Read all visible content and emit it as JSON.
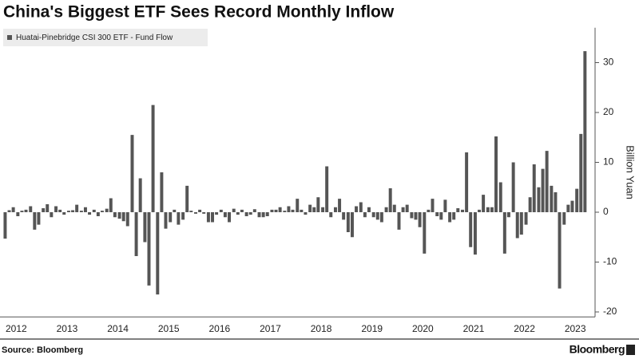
{
  "chart_data": {
    "type": "bar",
    "title": "China's Biggest ETF Sees Record Monthly Inflow",
    "y_axis_label": "Billion Yuan",
    "source": "Source: Bloomberg",
    "brand": "Bloomberg",
    "xlim": [
      2012.35,
      2024.06
    ],
    "ylim": [
      -21,
      37
    ],
    "yticks": [
      -20,
      -10,
      0,
      10,
      20,
      30
    ],
    "xticks": [
      {
        "value": 2012.67,
        "label": "2012"
      },
      {
        "value": 2013.67,
        "label": "2013"
      },
      {
        "value": 2014.67,
        "label": "2014"
      },
      {
        "value": 2015.67,
        "label": "2015"
      },
      {
        "value": 2016.67,
        "label": "2016"
      },
      {
        "value": 2017.67,
        "label": "2017"
      },
      {
        "value": 2018.67,
        "label": "2018"
      },
      {
        "value": 2019.67,
        "label": "2019"
      },
      {
        "value": 2020.67,
        "label": "2020"
      },
      {
        "value": 2021.67,
        "label": "2021"
      },
      {
        "value": 2022.67,
        "label": "2022"
      },
      {
        "value": 2023.67,
        "label": "2023"
      }
    ],
    "x": [
      2012.42,
      2012.5,
      2012.58,
      2012.67,
      2012.75,
      2012.83,
      2012.92,
      2013,
      2013.08,
      2013.17,
      2013.25,
      2013.33,
      2013.42,
      2013.5,
      2013.58,
      2013.67,
      2013.75,
      2013.83,
      2013.92,
      2014,
      2014.08,
      2014.17,
      2014.25,
      2014.33,
      2014.42,
      2014.5,
      2014.58,
      2014.67,
      2014.75,
      2014.83,
      2014.92,
      2015,
      2015.08,
      2015.17,
      2015.25,
      2015.33,
      2015.42,
      2015.5,
      2015.58,
      2015.67,
      2015.75,
      2015.83,
      2015.92,
      2016,
      2016.08,
      2016.17,
      2016.25,
      2016.33,
      2016.42,
      2016.5,
      2016.58,
      2016.67,
      2016.75,
      2016.83,
      2016.92,
      2017,
      2017.08,
      2017.17,
      2017.25,
      2017.33,
      2017.42,
      2017.5,
      2017.58,
      2017.67,
      2017.75,
      2017.83,
      2017.92,
      2018,
      2018.08,
      2018.17,
      2018.25,
      2018.33,
      2018.42,
      2018.5,
      2018.58,
      2018.67,
      2018.75,
      2018.83,
      2018.92,
      2019,
      2019.08,
      2019.17,
      2019.25,
      2019.33,
      2019.42,
      2019.5,
      2019.58,
      2019.67,
      2019.75,
      2019.83,
      2019.92,
      2020,
      2020.08,
      2020.17,
      2020.25,
      2020.33,
      2020.42,
      2020.5,
      2020.58,
      2020.67,
      2020.75,
      2020.83,
      2020.92,
      2021,
      2021.08,
      2021.17,
      2021.25,
      2021.33,
      2021.42,
      2021.5,
      2021.58,
      2021.67,
      2021.75,
      2021.83,
      2021.92,
      2022,
      2022.08,
      2022.17,
      2022.25,
      2022.33,
      2022.42,
      2022.5,
      2022.58,
      2022.67,
      2022.75,
      2022.83,
      2022.92,
      2023,
      2023.08,
      2023.17,
      2023.25,
      2023.33,
      2023.42,
      2023.5,
      2023.58,
      2023.67,
      2023.75,
      2023.83
    ],
    "series": [
      {
        "name": "Huatai-Pinebridge CSI 300 ETF - Fund Flow",
        "color": "#555555",
        "values": [
          -5.3,
          0.4,
          1.0,
          -0.8,
          0.3,
          0.5,
          1.2,
          -3.5,
          -2.5,
          0.8,
          1.6,
          -1.0,
          1.2,
          0.5,
          -0.5,
          0.3,
          0.4,
          1.5,
          0.3,
          1.0,
          -0.5,
          0.5,
          -0.8,
          0.3,
          0.7,
          2.8,
          -1.0,
          -1.3,
          -1.8,
          -2.8,
          15.5,
          -8.8,
          6.8,
          -6.0,
          -14.7,
          21.5,
          -16.5,
          8.0,
          -3.3,
          -2.0,
          0.5,
          -2.5,
          -1.5,
          5.3,
          0.3,
          -0.3,
          0.5,
          -0.3,
          -2.0,
          -2.0,
          -0.5,
          0.5,
          -1.0,
          -2.0,
          0.7,
          -0.5,
          0.5,
          -0.8,
          -0.5,
          0.6,
          -1.0,
          -1.0,
          -0.8,
          0.5,
          0.5,
          1.0,
          0.3,
          1.2,
          0.5,
          2.7,
          0.5,
          -0.5,
          1.5,
          1.0,
          3.0,
          1.0,
          9.2,
          -1.0,
          1.0,
          2.7,
          -1.5,
          -4.0,
          -5.0,
          1.2,
          2.0,
          -1.0,
          1.0,
          -1.0,
          -1.5,
          -2.0,
          1.0,
          4.8,
          1.5,
          -3.5,
          1.0,
          1.5,
          -1.2,
          -1.5,
          -3.0,
          -8.3,
          0.5,
          2.7,
          -0.8,
          -1.5,
          2.5,
          -2.0,
          -1.5,
          0.8,
          0.5,
          12.0,
          -7.0,
          -8.5,
          0.5,
          3.5,
          1.0,
          1.0,
          15.2,
          6.0,
          -8.3,
          -1.0,
          10.0,
          -5.2,
          -4.5,
          -2.5,
          3.0,
          9.6,
          5.0,
          8.7,
          12.3,
          5.3,
          4.0,
          -15.3,
          -2.5,
          1.5,
          2.3,
          4.7,
          15.7,
          32.3
        ]
      }
    ]
  }
}
